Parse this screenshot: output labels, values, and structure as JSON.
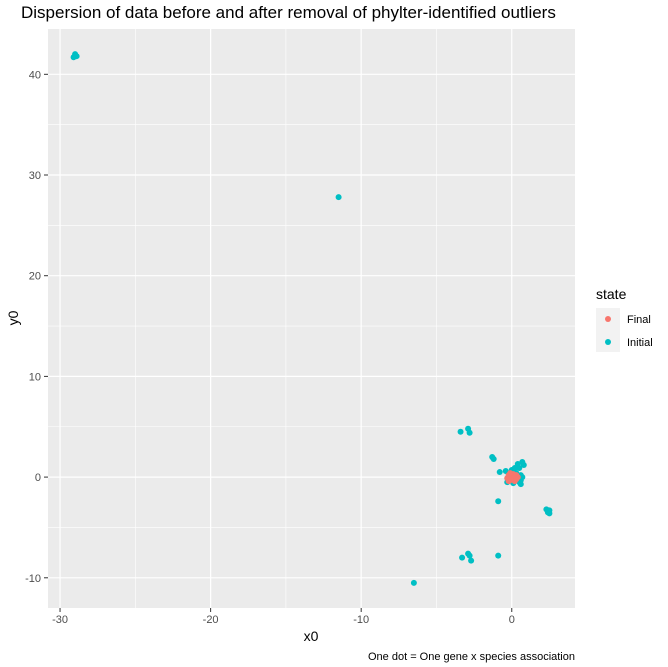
{
  "chart_data": {
    "type": "scatter",
    "title": "Dispersion of data before and after removal of phylter-identified outliers",
    "xlabel": "x0",
    "ylabel": "y0",
    "caption": "One dot = One gene x species association",
    "xlim": [
      -30.8,
      4.2
    ],
    "ylim": [
      -13.0,
      44.5
    ],
    "x_ticks": [
      -30,
      -20,
      -10,
      0
    ],
    "y_ticks": [
      -10,
      0,
      10,
      20,
      30,
      40
    ],
    "x_tick_labels": [
      "-30",
      "-20",
      "-10",
      "0"
    ],
    "y_tick_labels": [
      "-10",
      "0",
      "10",
      "20",
      "30",
      "40"
    ],
    "grid": true,
    "legend": {
      "title": "state",
      "position": "right",
      "entries": [
        {
          "label": "Final",
          "color": "#F8766D"
        },
        {
          "label": "Initial",
          "color": "#00BFC4"
        }
      ]
    },
    "series": [
      {
        "name": "Initial",
        "color": "#00BFC4",
        "points": [
          [
            -29.1,
            41.7
          ],
          [
            -29.0,
            42.0
          ],
          [
            -28.9,
            41.8
          ],
          [
            -11.5,
            27.8
          ],
          [
            -3.4,
            4.5
          ],
          [
            -2.9,
            4.8
          ],
          [
            -2.8,
            4.4
          ],
          [
            -1.3,
            2.0
          ],
          [
            -1.2,
            1.8
          ],
          [
            -0.8,
            0.5
          ],
          [
            -0.9,
            -2.4
          ],
          [
            -0.9,
            -7.8
          ],
          [
            -3.3,
            -8.0
          ],
          [
            -2.9,
            -7.6
          ],
          [
            -2.7,
            -8.3
          ],
          [
            -2.8,
            -7.8
          ],
          [
            -6.5,
            -10.5
          ],
          [
            -0.4,
            0.6
          ],
          [
            -0.3,
            -0.5
          ],
          [
            -0.2,
            0.3
          ],
          [
            0.0,
            0.7
          ],
          [
            0.1,
            -0.6
          ],
          [
            0.3,
            0.4
          ],
          [
            0.3,
            -0.2
          ],
          [
            0.4,
            1.3
          ],
          [
            0.5,
            -0.5
          ],
          [
            0.5,
            0.9
          ],
          [
            0.6,
            -0.3
          ],
          [
            0.6,
            0.2
          ],
          [
            0.7,
            1.5
          ],
          [
            0.8,
            1.2
          ],
          [
            0.6,
            -0.7
          ],
          [
            -0.2,
            -0.3
          ],
          [
            0.2,
            0.9
          ],
          [
            0.0,
            -0.4
          ],
          [
            0.7,
            0.0
          ],
          [
            2.3,
            -3.2
          ],
          [
            2.4,
            -3.5
          ],
          [
            2.5,
            -3.3
          ],
          [
            2.5,
            -3.6
          ]
        ]
      },
      {
        "name": "Final",
        "color": "#F8766D",
        "points": [
          [
            -0.3,
            -0.1
          ],
          [
            -0.2,
            0.2
          ],
          [
            -0.1,
            -0.3
          ],
          [
            0.0,
            0.1
          ],
          [
            0.0,
            -0.2
          ],
          [
            0.1,
            0.3
          ],
          [
            0.1,
            -0.1
          ],
          [
            0.2,
            0.0
          ],
          [
            0.3,
            -0.2
          ],
          [
            0.3,
            0.2
          ],
          [
            -0.1,
            0.4
          ],
          [
            0.2,
            -0.4
          ],
          [
            -0.2,
            -0.4
          ],
          [
            0.4,
            0.0
          ]
        ]
      }
    ]
  }
}
